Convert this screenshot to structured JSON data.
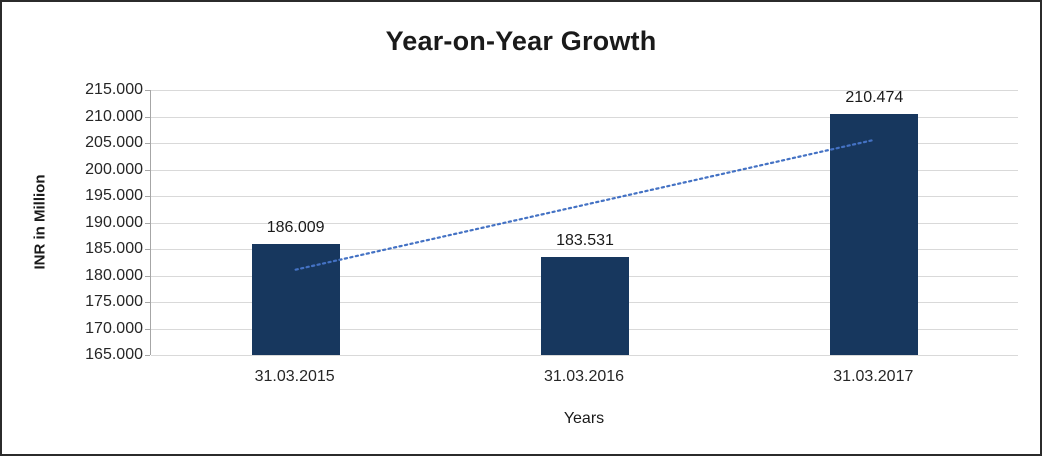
{
  "chart_data": {
    "type": "bar",
    "title": "Year-on-Year Growth",
    "xlabel": "Years",
    "ylabel": "INR in Million",
    "categories": [
      "31.03.2015",
      "31.03.2016",
      "31.03.2017"
    ],
    "values": [
      186.009,
      183.531,
      210.474
    ],
    "data_labels": [
      "186.009",
      "183.531",
      "210.474"
    ],
    "ylim": [
      165,
      215
    ],
    "ytick_step": 5,
    "ytick_labels": [
      "215.000",
      "210.000",
      "205.000",
      "200.000",
      "195.000",
      "190.000",
      "185.000",
      "180.000",
      "175.000",
      "170.000",
      "165.000"
    ],
    "grid": true,
    "legend": "none",
    "trendline": {
      "style": "dotted",
      "start_value": 181.1,
      "end_value": 205.6
    },
    "colors": {
      "bar": "#17375e",
      "trendline": "#4472c4",
      "gridline": "#d9d9d9",
      "axis": "#a6a6a6",
      "text": "#1a1a1a"
    }
  }
}
